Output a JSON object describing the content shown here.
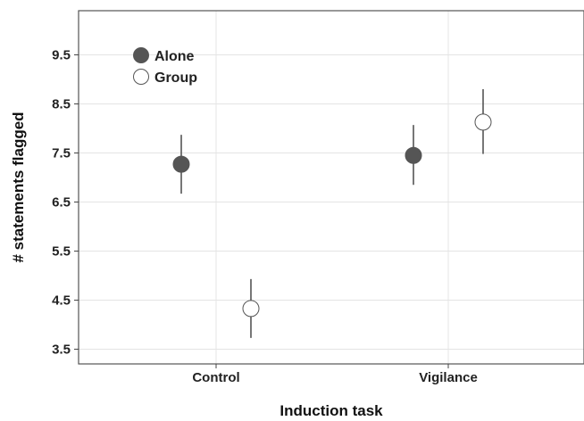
{
  "chart_data": {
    "type": "scatter",
    "title": "",
    "xlabel": "Induction task",
    "ylabel": "# statements flagged",
    "categories": [
      "Control",
      "Vigilance"
    ],
    "ylim": [
      3.2,
      10.4
    ],
    "yticks": [
      3.5,
      4.5,
      5.5,
      6.5,
      7.5,
      8.5,
      9.5
    ],
    "ytick_labels": [
      "3.5",
      "4.5",
      "5.5",
      "6.5",
      "7.5",
      "8.5",
      "9.5"
    ],
    "grid": true,
    "legend_position": "top-left",
    "error_bars": true,
    "series": [
      {
        "name": "Alone",
        "fill": "#555555",
        "points": [
          {
            "category": "Control",
            "value": 7.27,
            "err_low": 6.67,
            "err_high": 7.87
          },
          {
            "category": "Vigilance",
            "value": 7.45,
            "err_low": 6.85,
            "err_high": 8.07
          }
        ]
      },
      {
        "name": "Group",
        "fill": "#ffffff",
        "points": [
          {
            "category": "Control",
            "value": 4.33,
            "err_low": 3.73,
            "err_high": 4.93
          },
          {
            "category": "Vigilance",
            "value": 8.13,
            "err_low": 7.48,
            "err_high": 8.8
          }
        ]
      }
    ]
  }
}
